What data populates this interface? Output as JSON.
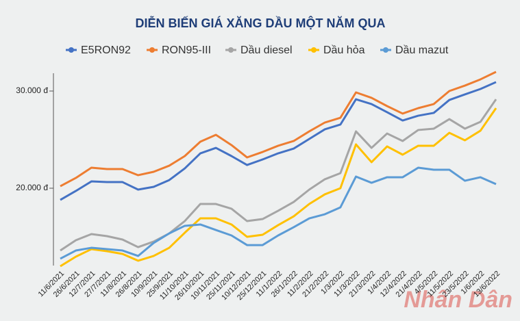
{
  "chart_data": {
    "type": "line",
    "title": "DIỄN BIẾN GIÁ XĂNG DẦU MỘT NĂM QUA",
    "categories": [
      "11/6/2021",
      "26/6/2021",
      "12/7/2021",
      "27/7/2021",
      "11/8/2021",
      "26/8/2021",
      "10/9/2021",
      "25/9/2021",
      "11/10/2021",
      "26/10/2021",
      "10/11/2021",
      "25/11/2021",
      "10/12/2021",
      "25/12/2021",
      "11/1/2022",
      "26/1/2022",
      "11/2/2022",
      "21/2/2022",
      "1/3/2022",
      "11/3/2022",
      "21/3/2022",
      "1/4/2022",
      "12/4/2022",
      "21/4/2022",
      "4/5/2022",
      "11/5/2022",
      "23/5/2022",
      "1/6/2022",
      "13/6/2022"
    ],
    "series": [
      {
        "name": "E5RON92",
        "color": "#4472c4",
        "values": [
          18800,
          19720,
          20700,
          20630,
          20630,
          19860,
          20140,
          20840,
          22040,
          23590,
          24150,
          23310,
          22390,
          22960,
          23590,
          24080,
          25070,
          26060,
          26550,
          29150,
          28660,
          27820,
          26970,
          27460,
          27750,
          29080,
          29650,
          30210,
          30920
        ]
      },
      {
        "name": "RON95-III",
        "color": "#ed7d31",
        "values": [
          20210,
          21060,
          22110,
          21970,
          21970,
          21340,
          21690,
          22320,
          23310,
          24790,
          25490,
          24440,
          23170,
          23730,
          24370,
          24860,
          25850,
          26760,
          27250,
          29860,
          29300,
          28450,
          27680,
          28240,
          28660,
          30000,
          30560,
          31200,
          31970
        ]
      },
      {
        "name": "Dầu diesel",
        "color": "#a5a5a5",
        "values": [
          13590,
          14650,
          15280,
          15070,
          14720,
          13940,
          14510,
          15350,
          16620,
          18380,
          18380,
          17890,
          16620,
          16830,
          17680,
          18590,
          19860,
          20920,
          21550,
          25850,
          24150,
          25630,
          24860,
          25990,
          26130,
          27110,
          26130,
          26830,
          29150
        ]
      },
      {
        "name": "Dầu hỏa",
        "color": "#ffc000",
        "values": [
          11970,
          12960,
          13730,
          13520,
          13240,
          12540,
          13030,
          13870,
          15420,
          16900,
          16900,
          16270,
          15000,
          15210,
          16200,
          17110,
          18380,
          19370,
          20000,
          24510,
          22680,
          24300,
          23450,
          24370,
          24370,
          25700,
          24930,
          25920,
          28240
        ]
      },
      {
        "name": "Dầu mazut",
        "color": "#5b9bd5",
        "values": [
          12750,
          13590,
          13870,
          13730,
          13590,
          13030,
          14370,
          15350,
          16130,
          16270,
          15700,
          15140,
          14150,
          14150,
          15140,
          15990,
          16900,
          17320,
          18030,
          21200,
          20560,
          21130,
          21130,
          22110,
          21900,
          21900,
          20770,
          21130,
          20420
        ]
      }
    ],
    "ylim": [
      11500,
      32000
    ],
    "yticks": [
      {
        "value": 20000,
        "label": "20.000 đ"
      },
      {
        "value": 30000,
        "label": "30.000 đ"
      }
    ],
    "grid": false,
    "legend": "top",
    "watermark": "Nhân Dân"
  }
}
